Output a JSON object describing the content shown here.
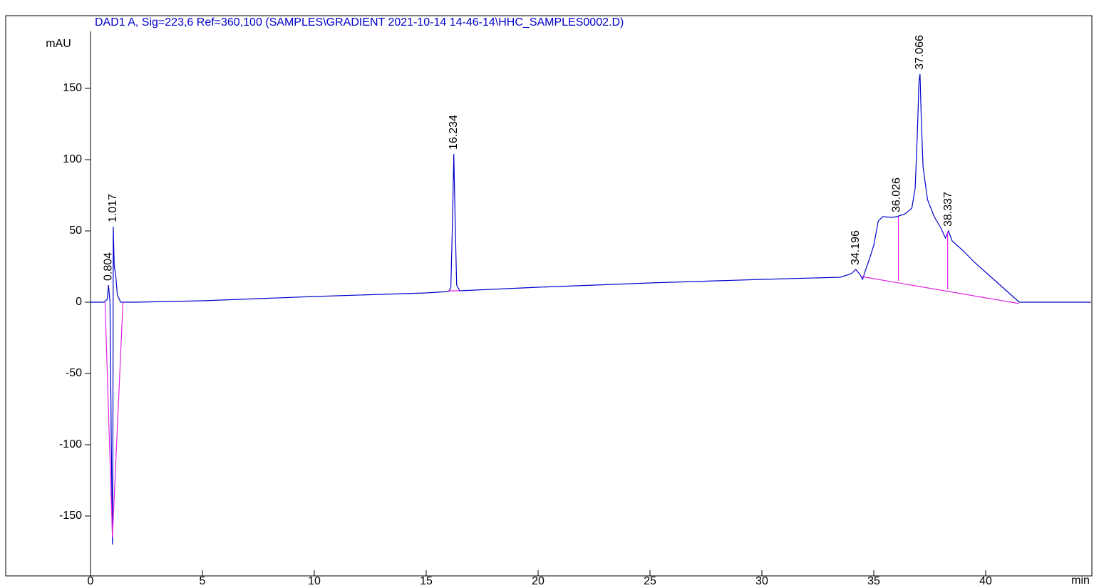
{
  "chart_data": {
    "type": "line",
    "title": "DAD1 A, Sig=223,6 Ref=360,100 (SAMPLES\\GRADIENT 2021-10-14 14-46-14\\HHC_SAMPLES0002.D)",
    "y_label": "mAU",
    "x_label": "min",
    "xlim": [
      0,
      44.7
    ],
    "ylim": [
      -192,
      190
    ],
    "xticks": [
      0,
      5,
      10,
      15,
      20,
      25,
      30,
      35,
      40
    ],
    "yticks": [
      -150,
      -100,
      -50,
      0,
      50,
      100,
      150
    ],
    "series": [
      {
        "name": "signal",
        "color": "#0000cc",
        "x": [
          0,
          0.6,
          0.75,
          0.804,
          0.87,
          0.93,
          0.98,
          1.0,
          1.017,
          1.06,
          1.12,
          1.2,
          1.35,
          2,
          5,
          10,
          15,
          16.0,
          16.1,
          16.18,
          16.234,
          16.29,
          16.36,
          16.5,
          20,
          25,
          30,
          33.5,
          34.0,
          34.196,
          34.4,
          34.5,
          34.6,
          34.8,
          35.0,
          35.2,
          35.4,
          35.8,
          36.026,
          36.4,
          36.7,
          36.85,
          36.95,
          37.02,
          37.066,
          37.12,
          37.2,
          37.4,
          37.7,
          38.0,
          38.2,
          38.337,
          38.5,
          39,
          39.5,
          40,
          40.5,
          41,
          41.5,
          42,
          44.7
        ],
        "values": [
          0,
          0,
          2,
          12,
          0,
          -100,
          -170,
          -100,
          53,
          25,
          20,
          5,
          0,
          0,
          1,
          4,
          6.5,
          7.5,
          10,
          60,
          104,
          60,
          12,
          8,
          10.5,
          13.5,
          16,
          17.5,
          20,
          23,
          19,
          16,
          21,
          30,
          40,
          57,
          60,
          59.5,
          60,
          62,
          66,
          80,
          120,
          155,
          160,
          130,
          95,
          72,
          60,
          52,
          45,
          50,
          43,
          36,
          28,
          21,
          14,
          7,
          0,
          0,
          0
        ]
      },
      {
        "name": "baseline",
        "color": "#e020e0",
        "x": [
          0.65,
          0.98,
          1.45,
          null,
          16.0,
          16.5,
          null,
          34.45,
          41.5,
          null,
          36.1,
          36.1,
          null,
          38.3,
          38.3
        ],
        "values": [
          0,
          -165,
          0,
          null,
          8,
          8,
          null,
          18,
          -1,
          null,
          15,
          60,
          null,
          9,
          49
        ]
      }
    ],
    "peaks": [
      0.804,
      1.017,
      16.234,
      34.196,
      36.026,
      37.066,
      38.337
    ]
  }
}
